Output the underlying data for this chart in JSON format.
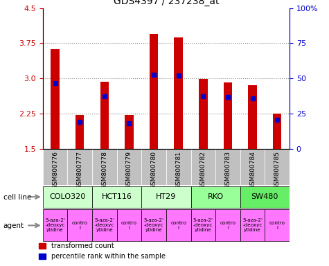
{
  "title": "GDS4397 / 237238_at",
  "samples": [
    "GSM800776",
    "GSM800777",
    "GSM800778",
    "GSM800779",
    "GSM800780",
    "GSM800781",
    "GSM800782",
    "GSM800783",
    "GSM800784",
    "GSM800785"
  ],
  "transformed_count": [
    3.63,
    2.22,
    2.93,
    2.22,
    3.95,
    3.87,
    2.99,
    2.92,
    2.86,
    2.25
  ],
  "percentile_rank": [
    2.9,
    2.08,
    2.62,
    2.04,
    3.08,
    3.07,
    2.62,
    2.6,
    2.57,
    2.12
  ],
  "ylim_left": [
    1.5,
    4.5
  ],
  "ylim_right": [
    0,
    100
  ],
  "yticks_left": [
    1.5,
    2.25,
    3.0,
    3.75,
    4.5
  ],
  "yticks_right": [
    0,
    25,
    50,
    75,
    100
  ],
  "yticklabels_right": [
    "0",
    "25",
    "50",
    "75",
    "100%"
  ],
  "bar_color": "#cc0000",
  "percentile_color": "#0000cc",
  "bar_bottom": 1.5,
  "cell_lines": [
    {
      "label": "COLO320",
      "start": 0,
      "end": 2,
      "color": "#ccffcc"
    },
    {
      "label": "HCT116",
      "start": 2,
      "end": 4,
      "color": "#ccffcc"
    },
    {
      "label": "HT29",
      "start": 4,
      "end": 6,
      "color": "#ccffcc"
    },
    {
      "label": "RKO",
      "start": 6,
      "end": 8,
      "color": "#99ff99"
    },
    {
      "label": "SW480",
      "start": 8,
      "end": 10,
      "color": "#66ee66"
    }
  ],
  "gsm_bg_color": "#c0c0c0",
  "legend_red": "transformed count",
  "legend_blue": "percentile rank within the sample",
  "cell_line_label": "cell line",
  "agent_label": "agent",
  "dotted_line_color": "#888888",
  "left_axis_color": "#cc0000",
  "right_axis_color": "#0000cc",
  "agent_labels": [
    "5-aza-2'\n-deoxyc\nytidine",
    "contro\nl",
    "5-aza-2'\n-deoxyc\nytidine",
    "contro\nl",
    "5-aza-2'\n-deoxyc\nytidine",
    "contro\nl",
    "5-aza-2'\n-deoxyc\nytidine",
    "contro\nl",
    "5-aza-2'\n-deoxyc\nytidine",
    "contro\nl"
  ],
  "agent_color": "#ff77ff"
}
